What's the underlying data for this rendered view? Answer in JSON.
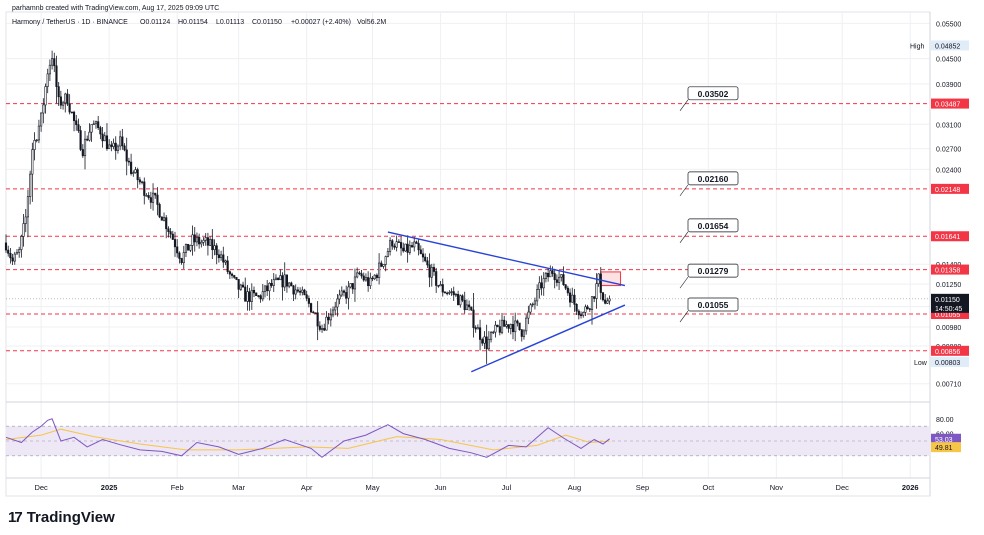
{
  "header": {
    "credit": "parhamnb created with TradingView.com, Aug 17, 2025 09:09 UTC",
    "symbol": "Harmony / TetherUS · 1D · BINANCE",
    "ohlc": {
      "open": "O0.01124",
      "high": "H0.01154",
      "low": "L0.01113",
      "close": "C0.01150",
      "change": "+0.00027 (+2.40%)",
      "volume": "Vol56.2M"
    }
  },
  "brand": {
    "name": "TradingView"
  },
  "colors": {
    "up": "#131722",
    "down": "#131722",
    "trendline": "#2743d8",
    "level": "#f23645",
    "rsi_line": "#7e57c2",
    "rsi_ma": "#f7c548",
    "rsi_band": "#ede7f6",
    "grid": "#eef0f3",
    "current_price_bg": "#131722"
  },
  "chart_data": [
    {
      "type": "candlestick",
      "title": "Harmony / TetherUS · 1D · BINANCE",
      "y_scale": "log",
      "ylim": [
        0.0064,
        0.058
      ],
      "x_range": [
        "2024-11-15",
        "2026-01-10"
      ],
      "x_ticks": [
        {
          "date": "2024-12-01",
          "label": "Dec"
        },
        {
          "date": "2025-01-01",
          "label": "2025"
        },
        {
          "date": "2025-02-01",
          "label": "Feb"
        },
        {
          "date": "2025-03-01",
          "label": "Mar"
        },
        {
          "date": "2025-04-01",
          "label": "Apr"
        },
        {
          "date": "2025-05-01",
          "label": "May"
        },
        {
          "date": "2025-06-01",
          "label": "Jun"
        },
        {
          "date": "2025-07-01",
          "label": "Jul"
        },
        {
          "date": "2025-08-01",
          "label": "Aug"
        },
        {
          "date": "2025-09-01",
          "label": "Sep"
        },
        {
          "date": "2025-10-01",
          "label": "Oct"
        },
        {
          "date": "2025-11-01",
          "label": "Nov"
        },
        {
          "date": "2025-12-01",
          "label": "Dec"
        },
        {
          "date": "2026-01-01",
          "label": "2026"
        }
      ],
      "y_ticks": [
        "0.05500",
        "0.04500",
        "0.03900",
        "0.03100",
        "0.02700",
        "0.02400",
        "0.01400",
        "0.01250",
        "0.01100",
        "0.00980",
        "0.00880",
        "0.00710"
      ],
      "price_path": [
        {
          "date": "2024-11-15",
          "close": 0.0158
        },
        {
          "date": "2024-11-18",
          "close": 0.0142
        },
        {
          "date": "2024-11-21",
          "close": 0.015
        },
        {
          "date": "2024-11-24",
          "close": 0.0182
        },
        {
          "date": "2024-11-27",
          "close": 0.027
        },
        {
          "date": "2024-12-01",
          "close": 0.032
        },
        {
          "date": "2024-12-04",
          "close": 0.042
        },
        {
          "date": "2024-12-06",
          "close": 0.046
        },
        {
          "date": "2024-12-09",
          "close": 0.035
        },
        {
          "date": "2024-12-13",
          "close": 0.036
        },
        {
          "date": "2024-12-17",
          "close": 0.03
        },
        {
          "date": "2024-12-20",
          "close": 0.027
        },
        {
          "date": "2024-12-24",
          "close": 0.031
        },
        {
          "date": "2024-12-28",
          "close": 0.03
        },
        {
          "date": "2025-01-02",
          "close": 0.0265
        },
        {
          "date": "2025-01-06",
          "close": 0.028
        },
        {
          "date": "2025-01-11",
          "close": 0.024
        },
        {
          "date": "2025-01-17",
          "close": 0.0215
        },
        {
          "date": "2025-01-22",
          "close": 0.02
        },
        {
          "date": "2025-01-28",
          "close": 0.0172
        },
        {
          "date": "2025-02-03",
          "close": 0.0145
        },
        {
          "date": "2025-02-08",
          "close": 0.016
        },
        {
          "date": "2025-02-14",
          "close": 0.0158
        },
        {
          "date": "2025-02-20",
          "close": 0.015
        },
        {
          "date": "2025-02-26",
          "close": 0.0128
        },
        {
          "date": "2025-03-04",
          "close": 0.0117
        },
        {
          "date": "2025-03-10",
          "close": 0.0116
        },
        {
          "date": "2025-03-16",
          "close": 0.0124
        },
        {
          "date": "2025-03-22",
          "close": 0.0128
        },
        {
          "date": "2025-03-28",
          "close": 0.012
        },
        {
          "date": "2025-04-03",
          "close": 0.011
        },
        {
          "date": "2025-04-08",
          "close": 0.0098
        },
        {
          "date": "2025-04-14",
          "close": 0.0112
        },
        {
          "date": "2025-04-20",
          "close": 0.012
        },
        {
          "date": "2025-04-25",
          "close": 0.0132
        },
        {
          "date": "2025-04-30",
          "close": 0.0125
        },
        {
          "date": "2025-05-05",
          "close": 0.014
        },
        {
          "date": "2025-05-10",
          "close": 0.016
        },
        {
          "date": "2025-05-15",
          "close": 0.015
        },
        {
          "date": "2025-05-20",
          "close": 0.0155
        },
        {
          "date": "2025-05-26",
          "close": 0.0138
        },
        {
          "date": "2025-06-01",
          "close": 0.0122
        },
        {
          "date": "2025-06-07",
          "close": 0.0118
        },
        {
          "date": "2025-06-13",
          "close": 0.011
        },
        {
          "date": "2025-06-18",
          "close": 0.0096
        },
        {
          "date": "2025-06-22",
          "close": 0.0089
        },
        {
          "date": "2025-06-27",
          "close": 0.0097
        },
        {
          "date": "2025-07-03",
          "close": 0.01
        },
        {
          "date": "2025-07-08",
          "close": 0.0096
        },
        {
          "date": "2025-07-12",
          "close": 0.0108
        },
        {
          "date": "2025-07-17",
          "close": 0.0125
        },
        {
          "date": "2025-07-22",
          "close": 0.0135
        },
        {
          "date": "2025-07-27",
          "close": 0.0126
        },
        {
          "date": "2025-08-01",
          "close": 0.0112
        },
        {
          "date": "2025-08-05",
          "close": 0.0106
        },
        {
          "date": "2025-08-09",
          "close": 0.0115
        },
        {
          "date": "2025-08-12",
          "close": 0.0128
        },
        {
          "date": "2025-08-15",
          "close": 0.0112
        },
        {
          "date": "2025-08-17",
          "close": 0.0115
        }
      ],
      "annotations": {
        "high": {
          "label": "High",
          "value": "0.04852",
          "price": 0.04852
        },
        "low": {
          "label": "Low",
          "value": "0.00803",
          "price": 0.00803
        },
        "current": {
          "value": "0.01150",
          "countdown": "14:50:45",
          "price": 0.0115
        },
        "levels": [
          {
            "value": "0.03487",
            "price": 0.03487
          },
          {
            "value": "0.02148",
            "price": 0.02148
          },
          {
            "value": "0.01641",
            "price": 0.01641
          },
          {
            "value": "0.01358",
            "price": 0.01358
          },
          {
            "value": "0.01055",
            "price": 0.01055
          },
          {
            "value": "0.00856",
            "price": 0.00856
          }
        ],
        "callouts": [
          {
            "value": "0.03502",
            "price": 0.03502
          },
          {
            "value": "0.02160",
            "price": 0.0216
          },
          {
            "value": "0.01654",
            "price": 0.01654
          },
          {
            "value": "0.01279",
            "price": 0.01279
          },
          {
            "value": "0.01055",
            "price": 0.01055
          }
        ],
        "trendlines": [
          {
            "from": {
              "date": "2025-05-08",
              "price": 0.0168
            },
            "to": {
              "date": "2025-08-24",
              "price": 0.0124
            }
          },
          {
            "from": {
              "date": "2025-06-15",
              "price": 0.0076
            },
            "to": {
              "date": "2025-08-24",
              "price": 0.0111
            }
          }
        ],
        "zone": {
          "from": {
            "date": "2025-08-13",
            "price": 0.0134
          },
          "to": {
            "date": "2025-08-22",
            "price": 0.0124
          }
        }
      }
    },
    {
      "type": "line",
      "title": "RSI",
      "ylim": [
        0,
        100
      ],
      "y_ticks": [
        "80.00",
        "60.00"
      ],
      "band": [
        30,
        70
      ],
      "current": {
        "rsi": "53.03",
        "ma": "49.81",
        "rsi_value": 53.03,
        "ma_value": 49.81
      },
      "series": [
        {
          "key": "rsi",
          "values": [
            {
              "date": "2024-11-15",
              "y": 55
            },
            {
              "date": "2024-11-22",
              "y": 48
            },
            {
              "date": "2024-11-27",
              "y": 62
            },
            {
              "date": "2024-12-01",
              "y": 70
            },
            {
              "date": "2024-12-04",
              "y": 78
            },
            {
              "date": "2024-12-06",
              "y": 80
            },
            {
              "date": "2024-12-10",
              "y": 50
            },
            {
              "date": "2024-12-16",
              "y": 55
            },
            {
              "date": "2024-12-22",
              "y": 42
            },
            {
              "date": "2024-12-29",
              "y": 52
            },
            {
              "date": "2025-01-06",
              "y": 45
            },
            {
              "date": "2025-01-15",
              "y": 38
            },
            {
              "date": "2025-01-25",
              "y": 36
            },
            {
              "date": "2025-02-03",
              "y": 30
            },
            {
              "date": "2025-02-10",
              "y": 48
            },
            {
              "date": "2025-02-20",
              "y": 42
            },
            {
              "date": "2025-03-01",
              "y": 32
            },
            {
              "date": "2025-03-12",
              "y": 40
            },
            {
              "date": "2025-03-22",
              "y": 52
            },
            {
              "date": "2025-04-03",
              "y": 40
            },
            {
              "date": "2025-04-08",
              "y": 28
            },
            {
              "date": "2025-04-18",
              "y": 50
            },
            {
              "date": "2025-04-28",
              "y": 58
            },
            {
              "date": "2025-05-08",
              "y": 72
            },
            {
              "date": "2025-05-15",
              "y": 60
            },
            {
              "date": "2025-05-25",
              "y": 52
            },
            {
              "date": "2025-06-05",
              "y": 40
            },
            {
              "date": "2025-06-15",
              "y": 34
            },
            {
              "date": "2025-06-22",
              "y": 28
            },
            {
              "date": "2025-07-02",
              "y": 44
            },
            {
              "date": "2025-07-10",
              "y": 42
            },
            {
              "date": "2025-07-20",
              "y": 68
            },
            {
              "date": "2025-07-27",
              "y": 54
            },
            {
              "date": "2025-08-04",
              "y": 40
            },
            {
              "date": "2025-08-10",
              "y": 52
            },
            {
              "date": "2025-08-14",
              "y": 46
            },
            {
              "date": "2025-08-17",
              "y": 53
            }
          ]
        },
        {
          "key": "rsi_ma",
          "values": [
            {
              "date": "2024-11-15",
              "y": 52
            },
            {
              "date": "2024-12-01",
              "y": 58
            },
            {
              "date": "2024-12-10",
              "y": 66
            },
            {
              "date": "2024-12-25",
              "y": 56
            },
            {
              "date": "2025-01-15",
              "y": 46
            },
            {
              "date": "2025-02-05",
              "y": 38
            },
            {
              "date": "2025-03-01",
              "y": 38
            },
            {
              "date": "2025-04-01",
              "y": 42
            },
            {
              "date": "2025-04-20",
              "y": 40
            },
            {
              "date": "2025-05-12",
              "y": 56
            },
            {
              "date": "2025-06-01",
              "y": 52
            },
            {
              "date": "2025-06-25",
              "y": 38
            },
            {
              "date": "2025-07-15",
              "y": 44
            },
            {
              "date": "2025-07-28",
              "y": 58
            },
            {
              "date": "2025-08-08",
              "y": 48
            },
            {
              "date": "2025-08-17",
              "y": 49.8
            }
          ]
        }
      ]
    }
  ]
}
